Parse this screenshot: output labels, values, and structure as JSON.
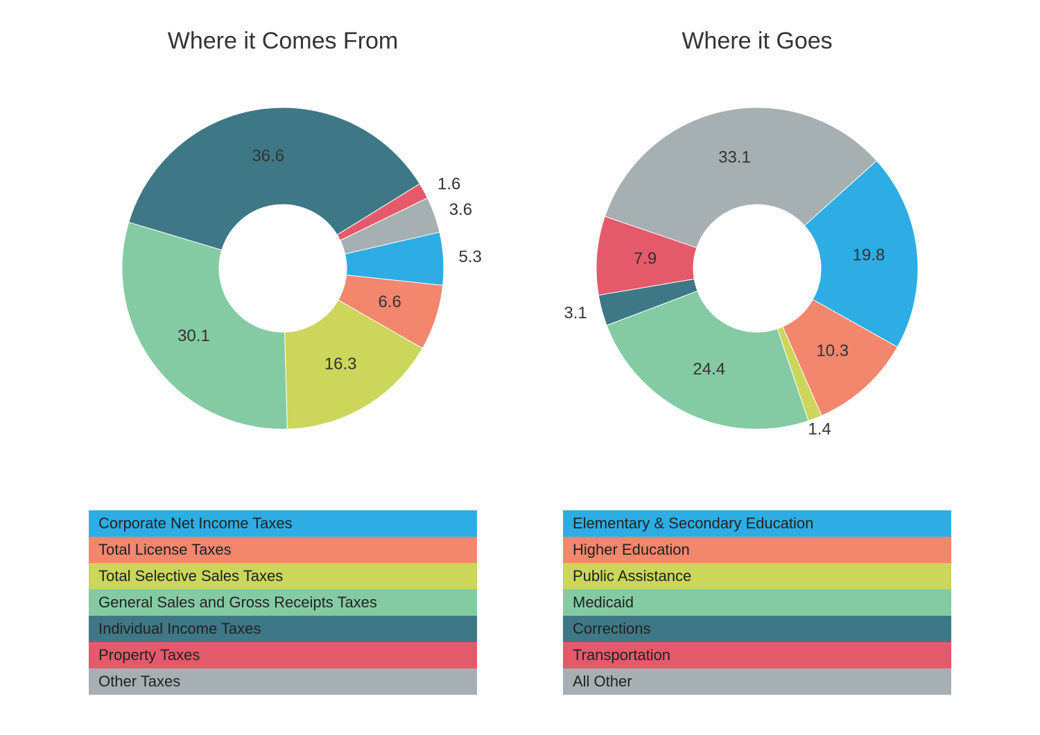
{
  "background_color": "#ffffff",
  "text_color": "#333333",
  "label_color": "#333333",
  "title_fontsize": 34,
  "label_fontsize": 24,
  "legend_fontsize": 22,
  "legend_row_height": 38,
  "charts": [
    {
      "id": "comes-from",
      "title": "Where it Comes From",
      "type": "donut",
      "outer_radius": 232,
      "inner_radius": 92,
      "start_angle_deg": 77,
      "direction": "clockwise",
      "slices": [
        {
          "label": "Corporate Net Income Taxes",
          "value": 5.3,
          "color": "#2dade4",
          "value_pos": "outside",
          "justify": "start"
        },
        {
          "label": "Total License Taxes",
          "value": 6.6,
          "color": "#f2876e",
          "value_pos": "inside",
          "justify": "start"
        },
        {
          "label": "Total Selective Sales Taxes",
          "value": 16.3,
          "color": "#cbd65b",
          "value_pos": "inside",
          "justify": "start"
        },
        {
          "label": "General Sales and Gross Receipts Taxes",
          "value": 30.1,
          "color": "#84cba4",
          "value_pos": "inside",
          "justify": "start"
        },
        {
          "label": "Individual Income Taxes",
          "value": 36.6,
          "color": "#3e7785",
          "value_pos": "inside",
          "justify": "start"
        },
        {
          "label": "Property Taxes",
          "value": 1.6,
          "color": "#e55a6a",
          "value_pos": "outside",
          "justify": "start"
        },
        {
          "label": "Other Taxes",
          "value": 3.6,
          "color": "#a6b0b3",
          "value_pos": "outside",
          "justify": "start"
        }
      ]
    },
    {
      "id": "goes",
      "title": "Where it Goes",
      "type": "donut",
      "outer_radius": 232,
      "inner_radius": 92,
      "start_angle_deg": 48,
      "direction": "clockwise",
      "slices": [
        {
          "label": "Elementary & Secondary Education",
          "value": 19.8,
          "color": "#2dade4",
          "value_pos": "inside",
          "justify": "start"
        },
        {
          "label": "Higher Education",
          "value": 10.3,
          "color": "#f2876e",
          "value_pos": "inside",
          "justify": "start"
        },
        {
          "label": "Public Assistance",
          "value": 1.4,
          "color": "#cbd65b",
          "value_pos": "outside",
          "justify": "middle"
        },
        {
          "label": "Medicaid",
          "value": 24.4,
          "color": "#84cba4",
          "value_pos": "inside",
          "justify": "start"
        },
        {
          "label": "Corrections",
          "value": 3.1,
          "color": "#3e7785",
          "value_pos": "outside",
          "justify": "end"
        },
        {
          "label": "Transportation",
          "value": 7.9,
          "color": "#e55a6a",
          "value_pos": "inside",
          "justify": "start"
        },
        {
          "label": "All Other",
          "value": 33.1,
          "color": "#a6b0b3",
          "value_pos": "inside",
          "justify": "start"
        }
      ]
    }
  ]
}
